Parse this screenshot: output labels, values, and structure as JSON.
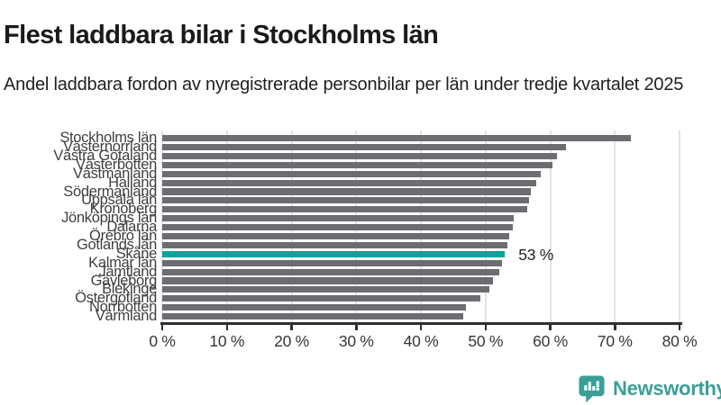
{
  "title": "Flest laddbara bilar i Stockholms län",
  "subtitle": "Andel laddbara fordon av nyregistrerade personbilar per län under tredje kvartalet 2025",
  "chart_data": {
    "type": "bar",
    "orientation": "horizontal",
    "title": "Flest laddbara bilar i Stockholms län",
    "subtitle": "Andel laddbara fordon av nyregistrerade personbilar per län under tredje kvartalet 2025",
    "categories": [
      "Stockholms län",
      "Västernorrland",
      "Västra Götaland",
      "Västerbotten",
      "Västmanland",
      "Halland",
      "Södermanland",
      "Uppsala län",
      "Kronoberg",
      "Jönköpings län",
      "Dalarna",
      "Örebro län",
      "Gotlands län",
      "Skåne",
      "Kalmar län",
      "Jämtland",
      "Gävleborg",
      "Blekinge",
      "Östergötland",
      "Norrbotten",
      "Värmland"
    ],
    "values": [
      72.5,
      62.4,
      61.0,
      60.4,
      58.5,
      57.8,
      57.0,
      56.7,
      56.4,
      54.4,
      54.2,
      53.6,
      53.4,
      53.0,
      52.6,
      52.1,
      51.2,
      50.6,
      49.2,
      46.9,
      46.5
    ],
    "unit": "%",
    "xlim": [
      0,
      80
    ],
    "x_ticks": [
      "0 %",
      "10 %",
      "20 %",
      "30 %",
      "40 %",
      "50 %",
      "60 %",
      "70 %",
      "80 %"
    ],
    "grid": true,
    "legend": false,
    "highlight_category": "Skåne",
    "highlight_value_label": "53 %",
    "colors": {
      "bar": "#6c6d71",
      "highlight": "#00a49c",
      "gridline": "#e3e3e3",
      "axis": "#2f2f2f"
    }
  },
  "branding": {
    "logo_text": "Newsworthy",
    "logo_icon": "newsworthy-speech-bubble-chart-icon",
    "color": "#3a9f97"
  }
}
